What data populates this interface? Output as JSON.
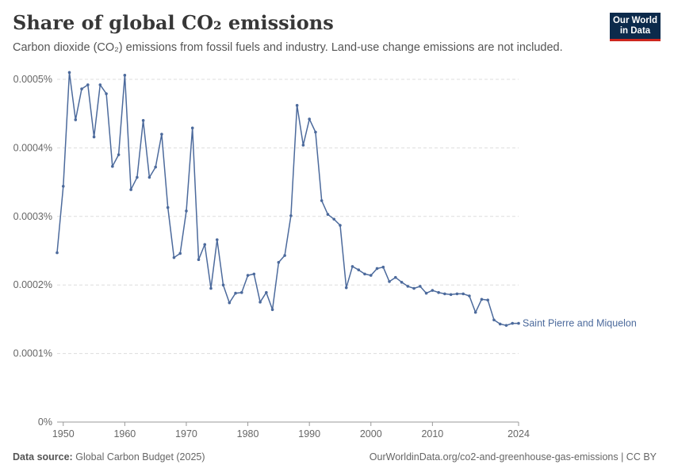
{
  "header": {
    "title": "Share of global CO₂ emissions",
    "subtitle": "Carbon dioxide (CO₂) emissions from fossil fuels and industry. Land-use change emissions are not included."
  },
  "logo": {
    "line1": "Our World",
    "line2": "in Data"
  },
  "footer": {
    "source_label": "Data source:",
    "source_value": "Global Carbon Budget (2025)",
    "url": "OurWorldinData.org/co2-and-greenhouse-gas-emissions | CC BY"
  },
  "colors": {
    "line": "#4c6a9c",
    "grid": "#dddddd",
    "axis": "#999999",
    "logo_bg": "#0c2a4b",
    "logo_accent": "#ce261e"
  },
  "chart_data": {
    "type": "line",
    "xlim": [
      1949,
      2024
    ],
    "ylim": [
      0,
      0.0005
    ],
    "y_ticks": [
      0,
      0.0001,
      0.0002,
      0.0003,
      0.0004,
      0.0005
    ],
    "y_tick_labels": [
      "0%",
      "0.0001%",
      "0.0002%",
      "0.0003%",
      "0.0004%",
      "0.0005%"
    ],
    "x_ticks": [
      1950,
      1960,
      1970,
      1980,
      1990,
      2000,
      2010,
      2024
    ],
    "x_tick_labels": [
      "1950",
      "1960",
      "1970",
      "1980",
      "1990",
      "2000",
      "2010",
      "2024"
    ],
    "grid": "horizontal dashed",
    "series": [
      {
        "name": "Saint Pierre and Miquelon",
        "x": [
          1949,
          1950,
          1951,
          1952,
          1953,
          1954,
          1955,
          1956,
          1957,
          1958,
          1959,
          1960,
          1961,
          1962,
          1963,
          1964,
          1965,
          1966,
          1967,
          1968,
          1969,
          1970,
          1971,
          1972,
          1973,
          1974,
          1975,
          1976,
          1977,
          1978,
          1979,
          1980,
          1981,
          1982,
          1983,
          1984,
          1985,
          1986,
          1987,
          1988,
          1989,
          1990,
          1991,
          1992,
          1993,
          1994,
          1995,
          1996,
          1997,
          1998,
          1999,
          2000,
          2001,
          2002,
          2003,
          2004,
          2005,
          2006,
          2007,
          2008,
          2009,
          2010,
          2011,
          2012,
          2013,
          2014,
          2015,
          2016,
          2017,
          2018,
          2019,
          2020,
          2021,
          2022,
          2023,
          2024
        ],
        "values": [
          0.000247,
          0.000344,
          0.00051,
          0.000441,
          0.000486,
          0.000492,
          0.000416,
          0.000492,
          0.000479,
          0.000373,
          0.00039,
          0.000506,
          0.000339,
          0.000357,
          0.00044,
          0.000357,
          0.000372,
          0.00042,
          0.000313,
          0.00024,
          0.000246,
          0.000308,
          0.000429,
          0.000237,
          0.000259,
          0.000195,
          0.000266,
          0.0002,
          0.000174,
          0.000188,
          0.000189,
          0.000214,
          0.000216,
          0.000175,
          0.000189,
          0.000164,
          0.000233,
          0.000243,
          0.000301,
          0.000462,
          0.000404,
          0.000442,
          0.000423,
          0.000323,
          0.000303,
          0.000296,
          0.000287,
          0.000196,
          0.000227,
          0.000222,
          0.000216,
          0.000214,
          0.000224,
          0.000226,
          0.000205,
          0.000211,
          0.000204,
          0.000198,
          0.000195,
          0.000198,
          0.000188,
          0.000192,
          0.000189,
          0.000187,
          0.000186,
          0.000187,
          0.000187,
          0.000184,
          0.00016,
          0.000179,
          0.000178,
          0.000149,
          0.000143,
          0.000141,
          0.000144,
          0.000144
        ]
      }
    ]
  }
}
